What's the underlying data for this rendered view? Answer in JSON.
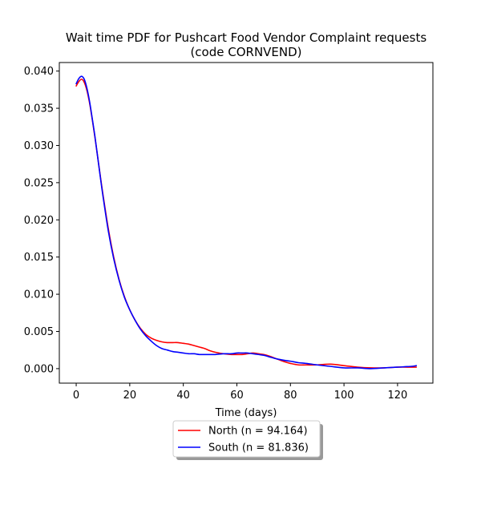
{
  "chart_data": {
    "type": "line",
    "title_line1": "Wait time PDF for Pushcart Food Vendor Complaint  requests",
    "title_line2": "(code CORNVEND)",
    "xlabel": "Time (days)",
    "ylabel": "",
    "xlim": [
      -6.3,
      133.2
    ],
    "ylim": [
      -0.00195,
      0.04115
    ],
    "xticks": [
      0,
      20,
      40,
      60,
      80,
      100,
      120
    ],
    "xtick_labels": [
      "0",
      "20",
      "40",
      "60",
      "80",
      "100",
      "120"
    ],
    "yticks": [
      0.0,
      0.005,
      0.01,
      0.015,
      0.02,
      0.025,
      0.03,
      0.035,
      0.04
    ],
    "ytick_labels": [
      "0.000",
      "0.005",
      "0.010",
      "0.015",
      "0.020",
      "0.025",
      "0.030",
      "0.035",
      "0.040"
    ],
    "grid": false,
    "legend_position": "below",
    "series": [
      {
        "name": "North (n = 94.164)",
        "color": "#ff0000",
        "x": [
          0,
          1,
          2,
          3,
          4,
          5,
          6,
          7,
          8,
          9,
          10,
          12,
          14,
          16,
          18,
          20,
          22,
          24,
          26,
          28,
          30,
          32,
          34,
          36,
          38,
          40,
          42,
          44,
          46,
          48,
          50,
          52,
          55,
          58,
          60,
          62,
          64,
          66,
          68,
          70,
          72,
          75,
          78,
          80,
          83,
          86,
          90,
          95,
          100,
          105,
          110,
          115,
          120,
          125,
          127
        ],
        "y": [
          0.038,
          0.0386,
          0.0389,
          0.0385,
          0.0374,
          0.0357,
          0.0335,
          0.0311,
          0.0285,
          0.0259,
          0.0234,
          0.0188,
          0.015,
          0.012,
          0.0097,
          0.0079,
          0.0065,
          0.0054,
          0.0046,
          0.0041,
          0.0038,
          0.0036,
          0.0035,
          0.0035,
          0.0035,
          0.0034,
          0.0033,
          0.0031,
          0.0029,
          0.0027,
          0.0024,
          0.0022,
          0.002,
          0.0019,
          0.0019,
          0.0019,
          0.002,
          0.0021,
          0.002,
          0.0019,
          0.0017,
          0.0013,
          0.0009,
          0.0007,
          0.0005,
          0.0005,
          0.0005,
          0.0006,
          0.0004,
          0.0002,
          0.0001,
          0.0001,
          0.0002,
          0.0002,
          0.0002
        ]
      },
      {
        "name": "South (n = 81.836)",
        "color": "#0000ff",
        "x": [
          0,
          1,
          2,
          3,
          4,
          5,
          6,
          7,
          8,
          9,
          10,
          12,
          14,
          16,
          18,
          20,
          22,
          24,
          26,
          28,
          30,
          32,
          34,
          36,
          38,
          40,
          42,
          44,
          46,
          48,
          50,
          52,
          55,
          58,
          60,
          62,
          64,
          66,
          68,
          70,
          72,
          75,
          78,
          80,
          83,
          86,
          90,
          95,
          100,
          105,
          110,
          115,
          120,
          125,
          127
        ],
        "y": [
          0.0383,
          0.039,
          0.0393,
          0.0389,
          0.0377,
          0.0359,
          0.0336,
          0.0312,
          0.0285,
          0.0258,
          0.0232,
          0.0185,
          0.0148,
          0.0119,
          0.0096,
          0.0079,
          0.0065,
          0.0053,
          0.0044,
          0.0037,
          0.0031,
          0.0027,
          0.0025,
          0.0023,
          0.0022,
          0.0021,
          0.002,
          0.002,
          0.0019,
          0.0019,
          0.0019,
          0.0019,
          0.002,
          0.002,
          0.0021,
          0.0021,
          0.0021,
          0.002,
          0.0019,
          0.0018,
          0.0016,
          0.0013,
          0.0011,
          0.001,
          0.0008,
          0.0007,
          0.0005,
          0.0003,
          0.0001,
          0.0001,
          0.0,
          0.0001,
          0.0002,
          0.0003,
          0.0004
        ]
      }
    ]
  }
}
